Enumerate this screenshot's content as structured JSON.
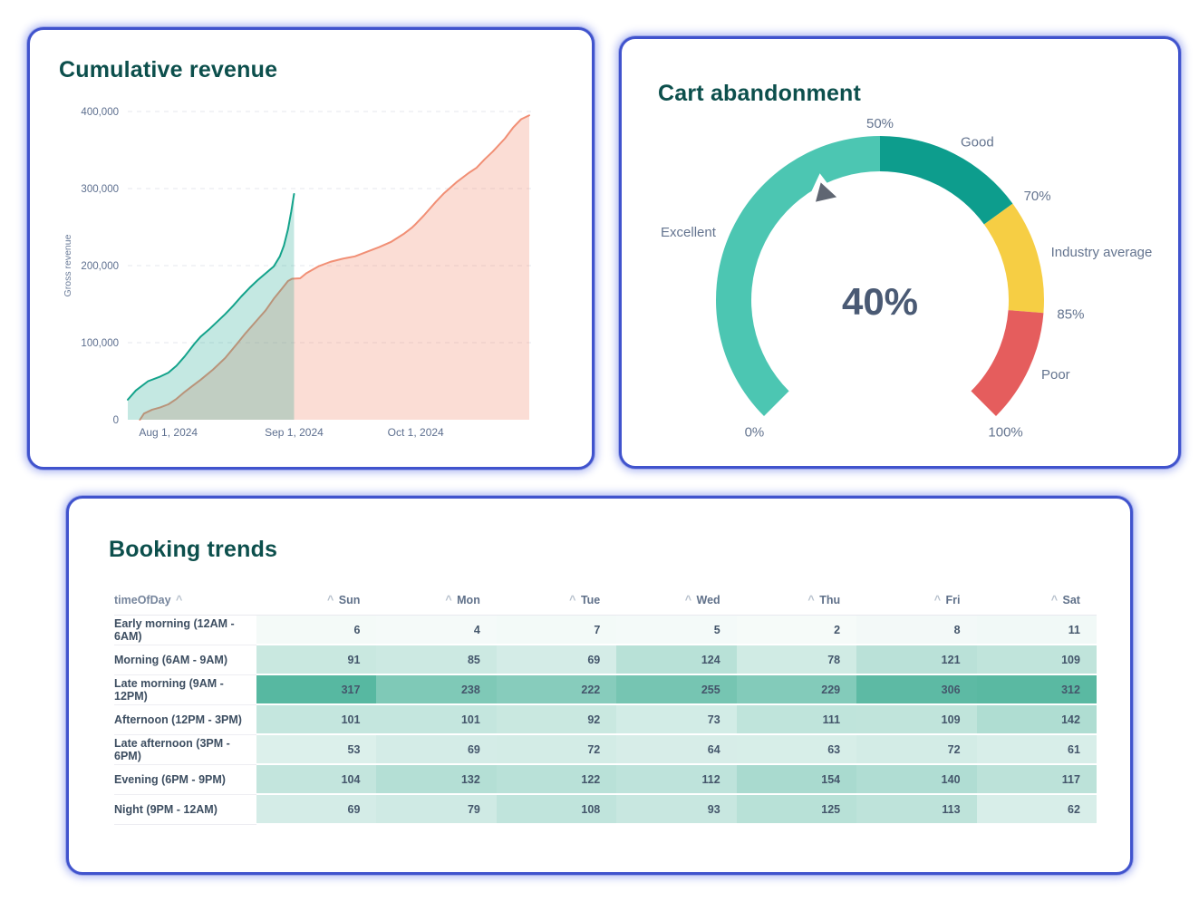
{
  "accent_colors": {
    "card_border": "#4053cd",
    "title": "#0c4f4c"
  },
  "chart_data": [
    {
      "type": "area",
      "title": "Cumulative revenue",
      "xlabel": "",
      "ylabel": "Gross revenue",
      "ylim": [
        0,
        400000
      ],
      "grid": true,
      "yticks": [
        {
          "value": 0,
          "label": "0"
        },
        {
          "value": 100000,
          "label": "100,000"
        },
        {
          "value": 200000,
          "label": "200,000"
        },
        {
          "value": 300000,
          "label": "300,000"
        },
        {
          "value": 400000,
          "label": "400,000"
        }
      ],
      "x_unit": "day_index",
      "x_domain": [
        0,
        99
      ],
      "xticks": [
        {
          "day": 10,
          "label": "Aug 1, 2024"
        },
        {
          "day": 41,
          "label": "Sep 1, 2024"
        },
        {
          "day": 71,
          "label": "Oct 1, 2024"
        }
      ],
      "series": [
        {
          "name": "salmon",
          "color": "#f18f75",
          "fill": "rgba(241,143,117,0.30)",
          "points": [
            [
              3,
              0
            ],
            [
              4,
              8000
            ],
            [
              6,
              13000
            ],
            [
              8,
              16000
            ],
            [
              10,
              20000
            ],
            [
              12,
              27000
            ],
            [
              14,
              36000
            ],
            [
              16,
              44000
            ],
            [
              18,
              52000
            ],
            [
              21,
              65000
            ],
            [
              24,
              80000
            ],
            [
              27,
              99000
            ],
            [
              29,
              112000
            ],
            [
              32,
              130000
            ],
            [
              34,
              142000
            ],
            [
              36,
              157000
            ],
            [
              38,
              170000
            ],
            [
              39.5,
              180000
            ],
            [
              40.5,
              183000
            ],
            [
              42.5,
              183500
            ],
            [
              44,
              190000
            ],
            [
              47,
              199000
            ],
            [
              50,
              205000
            ],
            [
              53,
              209000
            ],
            [
              56,
              212000
            ],
            [
              59,
              218000
            ],
            [
              62,
              224000
            ],
            [
              65,
              231000
            ],
            [
              68,
              241000
            ],
            [
              70,
              249000
            ],
            [
              71,
              254000
            ],
            [
              73,
              265000
            ],
            [
              76,
              283000
            ],
            [
              78,
              294000
            ],
            [
              81,
              308000
            ],
            [
              84,
              320000
            ],
            [
              86,
              327000
            ],
            [
              88,
              338000
            ],
            [
              90,
              348000
            ],
            [
              93,
              365000
            ],
            [
              95,
              379000
            ],
            [
              97,
              390000
            ],
            [
              99,
              395000
            ]
          ]
        },
        {
          "name": "teal",
          "color": "#14a38b",
          "fill": "rgba(20,163,139,0.25)",
          "points": [
            [
              0,
              26000
            ],
            [
              2,
              38000
            ],
            [
              5,
              50000
            ],
            [
              8,
              56000
            ],
            [
              10,
              61000
            ],
            [
              12,
              70000
            ],
            [
              14,
              82000
            ],
            [
              16.5,
              99000
            ],
            [
              18,
              108000
            ],
            [
              20,
              117000
            ],
            [
              22,
              127000
            ],
            [
              24,
              137000
            ],
            [
              26,
              148000
            ],
            [
              28,
              160000
            ],
            [
              30,
              171000
            ],
            [
              32,
              181000
            ],
            [
              34,
              190000
            ],
            [
              36,
              199000
            ],
            [
              37.5,
              212000
            ],
            [
              38.5,
              226000
            ],
            [
              39.5,
              247000
            ],
            [
              40.3,
              270000
            ],
            [
              41,
              293000
            ]
          ]
        }
      ]
    },
    {
      "type": "gauge",
      "title": "Cart abandonment",
      "value": 40,
      "value_label": "40%",
      "min": 0,
      "max": 100,
      "start_angle": -135,
      "end_angle": 135,
      "segments": [
        {
          "label": "Excellent",
          "from": 0,
          "to": 50,
          "color": "#4cc6b2"
        },
        {
          "label": "Good",
          "from": 50,
          "to": 70,
          "color": "#0d9d8d"
        },
        {
          "label": "Industry average",
          "from": 70,
          "to": 85,
          "color": "#f6ce44"
        },
        {
          "label": "Poor",
          "from": 85,
          "to": 100,
          "color": "#e55d5d"
        }
      ],
      "ticks": [
        {
          "value": 0,
          "label": "0%"
        },
        {
          "value": 50,
          "label": "50%"
        },
        {
          "value": 70,
          "label": "70%"
        },
        {
          "value": 85,
          "label": "85%"
        },
        {
          "value": 100,
          "label": "100%"
        }
      ],
      "pointer_color": "#5f6672",
      "value_text_color": "#4a5a74"
    },
    {
      "type": "heatmap",
      "title": "Booking trends",
      "row_header": "timeOfDay",
      "sort_icon": "^",
      "columns": [
        "Sun",
        "Mon",
        "Tue",
        "Wed",
        "Thu",
        "Fri",
        "Sat"
      ],
      "rows": [
        {
          "label": "Early morning (12AM - 6AM)",
          "values": [
            6,
            4,
            7,
            5,
            2,
            8,
            11
          ]
        },
        {
          "label": "Morning (6AM - 9AM)",
          "values": [
            91,
            85,
            69,
            124,
            78,
            121,
            109
          ]
        },
        {
          "label": "Late morning (9AM - 12PM)",
          "values": [
            317,
            238,
            222,
            255,
            229,
            306,
            312
          ]
        },
        {
          "label": "Afternoon (12PM - 3PM)",
          "values": [
            101,
            101,
            92,
            73,
            111,
            109,
            142
          ]
        },
        {
          "label": "Late afternoon (3PM - 6PM)",
          "values": [
            53,
            69,
            72,
            64,
            63,
            72,
            61
          ]
        },
        {
          "label": "Evening (6PM - 9PM)",
          "values": [
            104,
            132,
            122,
            112,
            154,
            140,
            117
          ]
        },
        {
          "label": "Night (9PM - 12AM)",
          "values": [
            69,
            79,
            108,
            93,
            125,
            113,
            62
          ]
        }
      ],
      "color_scale": {
        "min_color": "#f7fbfa",
        "max_color": "#57b8a1",
        "min_value": 0,
        "max_value": 317
      },
      "axis_text_color": "#5d6f8f"
    }
  ]
}
